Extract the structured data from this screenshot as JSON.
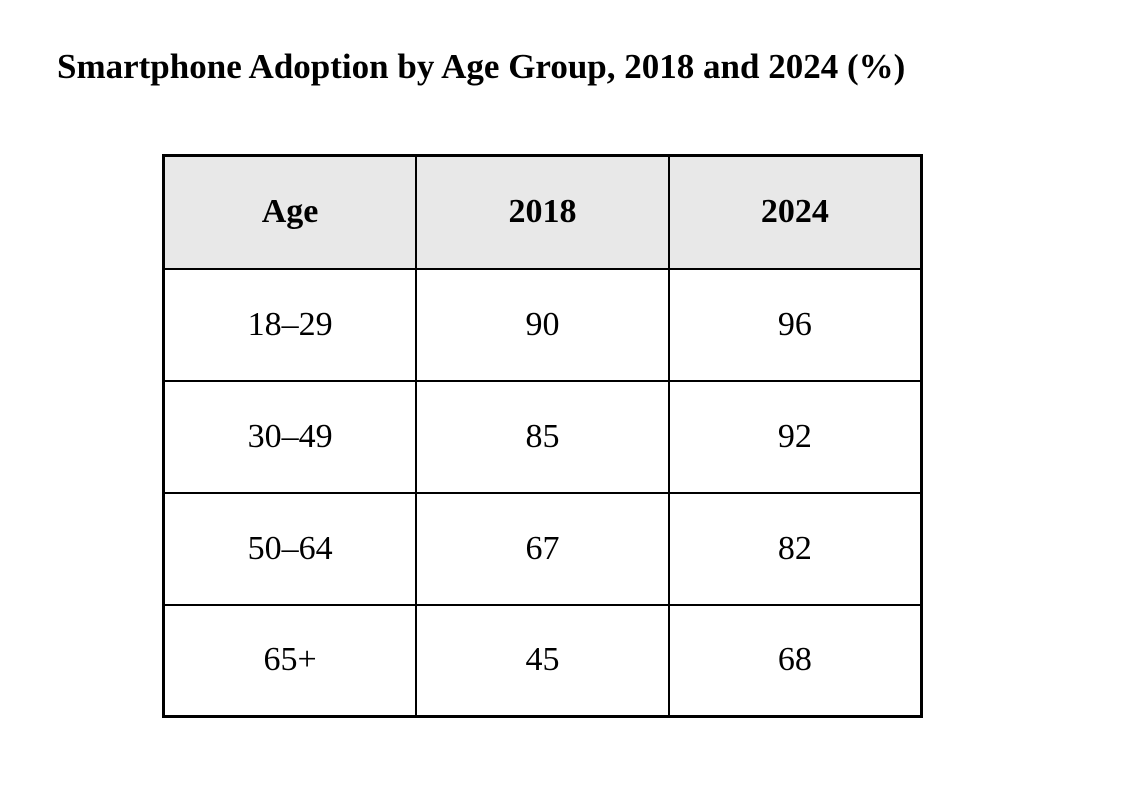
{
  "title": "Smartphone Adoption by Age Group, 2018 and 2024 (%)",
  "colors": {
    "page_background": "#ffffff",
    "header_row_background": "#e8e8e8",
    "border": "#000000",
    "text": "#000000"
  },
  "table": {
    "headers": [
      "Age",
      "2018",
      "2024"
    ],
    "rows": [
      {
        "cells": [
          "18–29",
          "90",
          "96"
        ]
      },
      {
        "cells": [
          "30–49",
          "85",
          "92"
        ]
      },
      {
        "cells": [
          "50–64",
          "67",
          "82"
        ]
      },
      {
        "cells": [
          "65+",
          "45",
          "68"
        ]
      }
    ]
  },
  "chart_data": {
    "type": "table",
    "title": "Smartphone Adoption by Age Group, 2018 and 2024 (%)",
    "unit": "%",
    "categories": [
      "18–29",
      "30–49",
      "50–64",
      "65+"
    ],
    "category_label": "Age",
    "series": [
      {
        "name": "2018",
        "values": [
          90,
          85,
          67,
          45
        ]
      },
      {
        "name": "2024",
        "values": [
          96,
          92,
          82,
          68
        ]
      }
    ]
  }
}
